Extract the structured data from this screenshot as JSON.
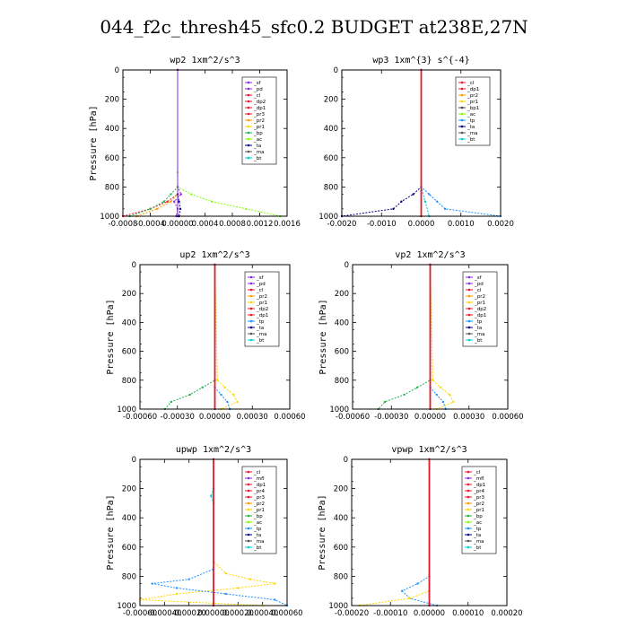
{
  "title": "044_f2c_thresh45_sfc0.2  BUDGET at238E,27N",
  "colors": {
    "sf": "#8a2be2",
    "mfl": "#8a2be2",
    "pd": "#8a2be2",
    "cl": "#e8172b",
    "dp1": "#e8172b",
    "dp2": "#e8172b",
    "pr3": "#e8172b",
    "pr4": "#e8172b",
    "pr2": "#ff9a00",
    "pr1": "#ffd700",
    "bp": "#22b14c",
    "ac": "#7fff00",
    "tp": "#1e90ff",
    "ta": "#000080",
    "ma": "#555555",
    "bt": "#00ced1"
  },
  "chart_data": [
    {
      "type": "line",
      "title": "wp2  1xm^2/s^3",
      "ylabel": "Pressure [hPa]",
      "xlim": [
        -0.0008,
        0.0016
      ],
      "ylim": [
        1000,
        0
      ],
      "y_inverted": true,
      "xticks": [
        "-0.0008",
        "-0.0004",
        "0.00000",
        "0.0004",
        "0.0008",
        "0.0012",
        "0.0016"
      ],
      "yticks": [
        "0",
        "200",
        "400",
        "600",
        "800",
        "1000"
      ],
      "legend": [
        "_sf",
        "_pd",
        "_cl",
        "_dp2",
        "_dp1",
        "_pr3",
        "_pr2",
        "_pr1",
        "_bp",
        "_ac",
        "_ta",
        "_ma",
        "_bt"
      ],
      "legend_position": "top-right",
      "series": [
        {
          "name": "_ac",
          "key": "ac",
          "y": [
            0,
            700,
            800,
            850,
            900,
            950,
            1000
          ],
          "x": [
            0,
            0,
            0,
            0.0002,
            0.0005,
            0.001,
            0.0015
          ]
        },
        {
          "name": "_pd",
          "key": "pd",
          "y": [
            0,
            800,
            850,
            900,
            950,
            1000
          ],
          "x": [
            0,
            0,
            5e-05,
            -5e-05,
            0,
            -2e-05
          ]
        },
        {
          "name": "_dp1",
          "key": "dp1",
          "y": [
            0,
            800,
            850,
            900,
            950,
            1000
          ],
          "x": [
            0,
            0,
            0,
            -0.00015,
            -0.0004,
            -0.0008
          ]
        },
        {
          "name": "_bp",
          "key": "bp",
          "y": [
            0,
            800,
            850,
            900,
            950,
            1000
          ],
          "x": [
            0,
            0,
            -0.0001,
            -0.0002,
            -0.0004,
            -0.0007
          ]
        },
        {
          "name": "_pr2",
          "key": "pr2",
          "y": [
            0,
            850,
            900,
            950,
            1000
          ],
          "x": [
            0,
            0,
            -0.0001,
            -0.0003,
            -0.0006
          ]
        },
        {
          "name": "_ta",
          "key": "ta",
          "y": [
            0,
            850,
            900,
            950,
            1000
          ],
          "x": [
            0,
            0,
            2e-05,
            4e-05,
            2e-05
          ]
        },
        {
          "name": "_sf",
          "key": "sf",
          "y": [
            0,
            1000
          ],
          "x": [
            0,
            0
          ]
        }
      ]
    },
    {
      "type": "line",
      "title": "wp3  1xm^{3} s^{-4}",
      "ylabel": "",
      "xlim": [
        -0.002,
        0.002
      ],
      "ylim": [
        1000,
        0
      ],
      "y_inverted": true,
      "xticks": [
        "-0.0020",
        "-0.0010",
        "0.0000",
        "0.0010",
        "0.0020"
      ],
      "yticks": [
        "0",
        "200",
        "400",
        "600",
        "800",
        "1000"
      ],
      "legend": [
        "_cl",
        "_dp1",
        "_pr2",
        "_pr1",
        "_bp1",
        "_ac",
        "_tp",
        "_ta",
        "_ma",
        "_bt"
      ],
      "legend_position": "top-right",
      "series": [
        {
          "name": "_tp",
          "key": "tp",
          "y": [
            0,
            800,
            850,
            900,
            950,
            1000
          ],
          "x": [
            0,
            0,
            0.0002,
            0.0004,
            0.0006,
            0.002
          ]
        },
        {
          "name": "_ta",
          "key": "ta",
          "y": [
            0,
            800,
            850,
            900,
            950,
            1000
          ],
          "x": [
            0,
            0,
            -0.0002,
            -0.0005,
            -0.0007,
            -0.002
          ]
        },
        {
          "name": "_bt",
          "key": "bt",
          "y": [
            0,
            800,
            900,
            1000
          ],
          "x": [
            0,
            0,
            0.0001,
            0.0002
          ]
        },
        {
          "name": "_cl",
          "key": "cl",
          "y": [
            0,
            1000
          ],
          "x": [
            0,
            0
          ]
        }
      ]
    },
    {
      "type": "line",
      "title": "up2  1xm^2/s^3",
      "ylabel": "Pressure [hPa]",
      "xlim": [
        -0.0006,
        0.0006
      ],
      "ylim": [
        1000,
        0
      ],
      "y_inverted": true,
      "xticks": [
        "-0.00060",
        "-0.00030",
        "0.00000",
        "0.00030",
        "0.00060"
      ],
      "yticks": [
        "0",
        "200",
        "400",
        "600",
        "800",
        "1000"
      ],
      "legend": [
        "_sf",
        "_pd",
        "_cl",
        "_pr2",
        "_pr1",
        "_dp2",
        "_dp1",
        "_tp",
        "_ta",
        "_ma",
        "_bt"
      ],
      "legend_position": "top-right",
      "series": [
        {
          "name": "_dp1",
          "key": "bp",
          "y": [
            0,
            800,
            850,
            900,
            950,
            1000
          ],
          "x": [
            0,
            0,
            -0.0001,
            -0.0002,
            -0.00035,
            -0.0004
          ]
        },
        {
          "name": "_pr1",
          "key": "pr1",
          "y": [
            0,
            800,
            850,
            900,
            950,
            1000
          ],
          "x": [
            0,
            2e-05,
            8e-05,
            0.00015,
            0.00018,
            5e-05
          ]
        },
        {
          "name": "_tp",
          "key": "tp",
          "y": [
            0,
            850,
            900,
            950,
            1000
          ],
          "x": [
            0,
            0,
            5e-05,
            0.0001,
            0.00012
          ]
        },
        {
          "name": "_cl",
          "key": "cl",
          "y": [
            0,
            1000
          ],
          "x": [
            0,
            0
          ]
        }
      ]
    },
    {
      "type": "line",
      "title": "vp2  1xm^2/s^3",
      "ylabel": "Pressure [hPa]",
      "xlim": [
        -0.0006,
        0.0006
      ],
      "ylim": [
        1000,
        0
      ],
      "y_inverted": true,
      "xticks": [
        "-0.00060",
        "-0.00030",
        "0.00000",
        "0.00030",
        "0.00060"
      ],
      "yticks": [
        "0",
        "200",
        "400",
        "600",
        "800",
        "1000"
      ],
      "legend": [
        "_sf",
        "_pd",
        "_cl",
        "_pr2",
        "_pr1",
        "_dp2",
        "_dp1",
        "_tp",
        "_ta",
        "_ma",
        "_bt"
      ],
      "legend_position": "top-right",
      "series": [
        {
          "name": "_dp1",
          "key": "bp",
          "y": [
            0,
            800,
            850,
            900,
            950,
            1000
          ],
          "x": [
            0,
            0,
            -0.0001,
            -0.0002,
            -0.00035,
            -0.0004
          ]
        },
        {
          "name": "_pr1",
          "key": "pr1",
          "y": [
            0,
            800,
            850,
            900,
            950,
            1000
          ],
          "x": [
            0,
            2e-05,
            8e-05,
            0.00015,
            0.00018,
            5e-05
          ]
        },
        {
          "name": "_tp",
          "key": "tp",
          "y": [
            0,
            850,
            900,
            950,
            1000
          ],
          "x": [
            0,
            0,
            5e-05,
            0.0001,
            0.00012
          ]
        },
        {
          "name": "_cl",
          "key": "cl",
          "y": [
            0,
            1000
          ],
          "x": [
            0,
            0
          ]
        }
      ]
    },
    {
      "type": "line",
      "title": "upwp  1xm^2/s^3",
      "ylabel": "Pressure [hPa]",
      "xlim": [
        -0.0006,
        0.0006
      ],
      "ylim": [
        1000,
        0
      ],
      "y_inverted": true,
      "xticks": [
        "-0.00060",
        "-0.00040",
        "-0.00020",
        "0.00000",
        "0.00020",
        "0.00040",
        "0.00060"
      ],
      "yticks": [
        "0",
        "200",
        "400",
        "600",
        "800",
        "1000"
      ],
      "legend": [
        "_cl",
        "_mfl",
        "_dp1",
        "_pr4",
        "_pr3",
        "_pr2",
        "_pr1",
        "_bp",
        "_ac",
        "_tp",
        "_ta",
        "_ma",
        "_bt"
      ],
      "legend_position": "top-right",
      "series": [
        {
          "name": "_pr1",
          "key": "pr1",
          "y": [
            0,
            700,
            780,
            820,
            850,
            880,
            920,
            960,
            1000
          ],
          "x": [
            0,
            0,
            0.0001,
            0.0003,
            0.0005,
            0.0002,
            -0.0003,
            -0.0006,
            0.0004
          ]
        },
        {
          "name": "_tp",
          "key": "tp",
          "y": [
            0,
            750,
            820,
            850,
            880,
            920,
            960,
            1000
          ],
          "x": [
            0,
            0,
            -0.0002,
            -0.0005,
            -0.0003,
            0.0001,
            0.0005,
            0.0006
          ]
        },
        {
          "name": "_bt",
          "key": "bt",
          "y": [
            0,
            200,
            250,
            300,
            1000
          ],
          "x": [
            0,
            0,
            -2e-05,
            0,
            0
          ]
        },
        {
          "name": "_cl",
          "key": "cl",
          "y": [
            0,
            1000
          ],
          "x": [
            0,
            0
          ]
        }
      ]
    },
    {
      "type": "line",
      "title": "vpwp  1xm^2/s^3",
      "ylabel": "Pressure [hPa]",
      "xlim": [
        -0.0002,
        0.0002
      ],
      "ylim": [
        1000,
        0
      ],
      "y_inverted": true,
      "xticks": [
        "-0.00020",
        "-0.00010",
        "0.00000",
        "0.00010",
        "0.00020"
      ],
      "yticks": [
        "0",
        "200",
        "400",
        "600",
        "800",
        "1000"
      ],
      "legend": [
        "_cl",
        "_mfl",
        "_dp1",
        "_pr4",
        "_pr3",
        "_pr2",
        "_pr1",
        "_bp",
        "_ac",
        "_tp",
        "_ta",
        "_ma",
        "_bt"
      ],
      "legend_position": "top-right",
      "series": [
        {
          "name": "_tp",
          "key": "tp",
          "y": [
            0,
            800,
            850,
            900,
            950,
            1000
          ],
          "x": [
            0,
            0,
            -3e-05,
            -7e-05,
            -5e-05,
            2e-05
          ]
        },
        {
          "name": "_pr1",
          "key": "pr1",
          "y": [
            0,
            900,
            950,
            1000
          ],
          "x": [
            0,
            0,
            -5e-05,
            -0.00018
          ]
        },
        {
          "name": "_cl",
          "key": "cl",
          "y": [
            0,
            1000
          ],
          "x": [
            0,
            0
          ]
        }
      ]
    }
  ]
}
